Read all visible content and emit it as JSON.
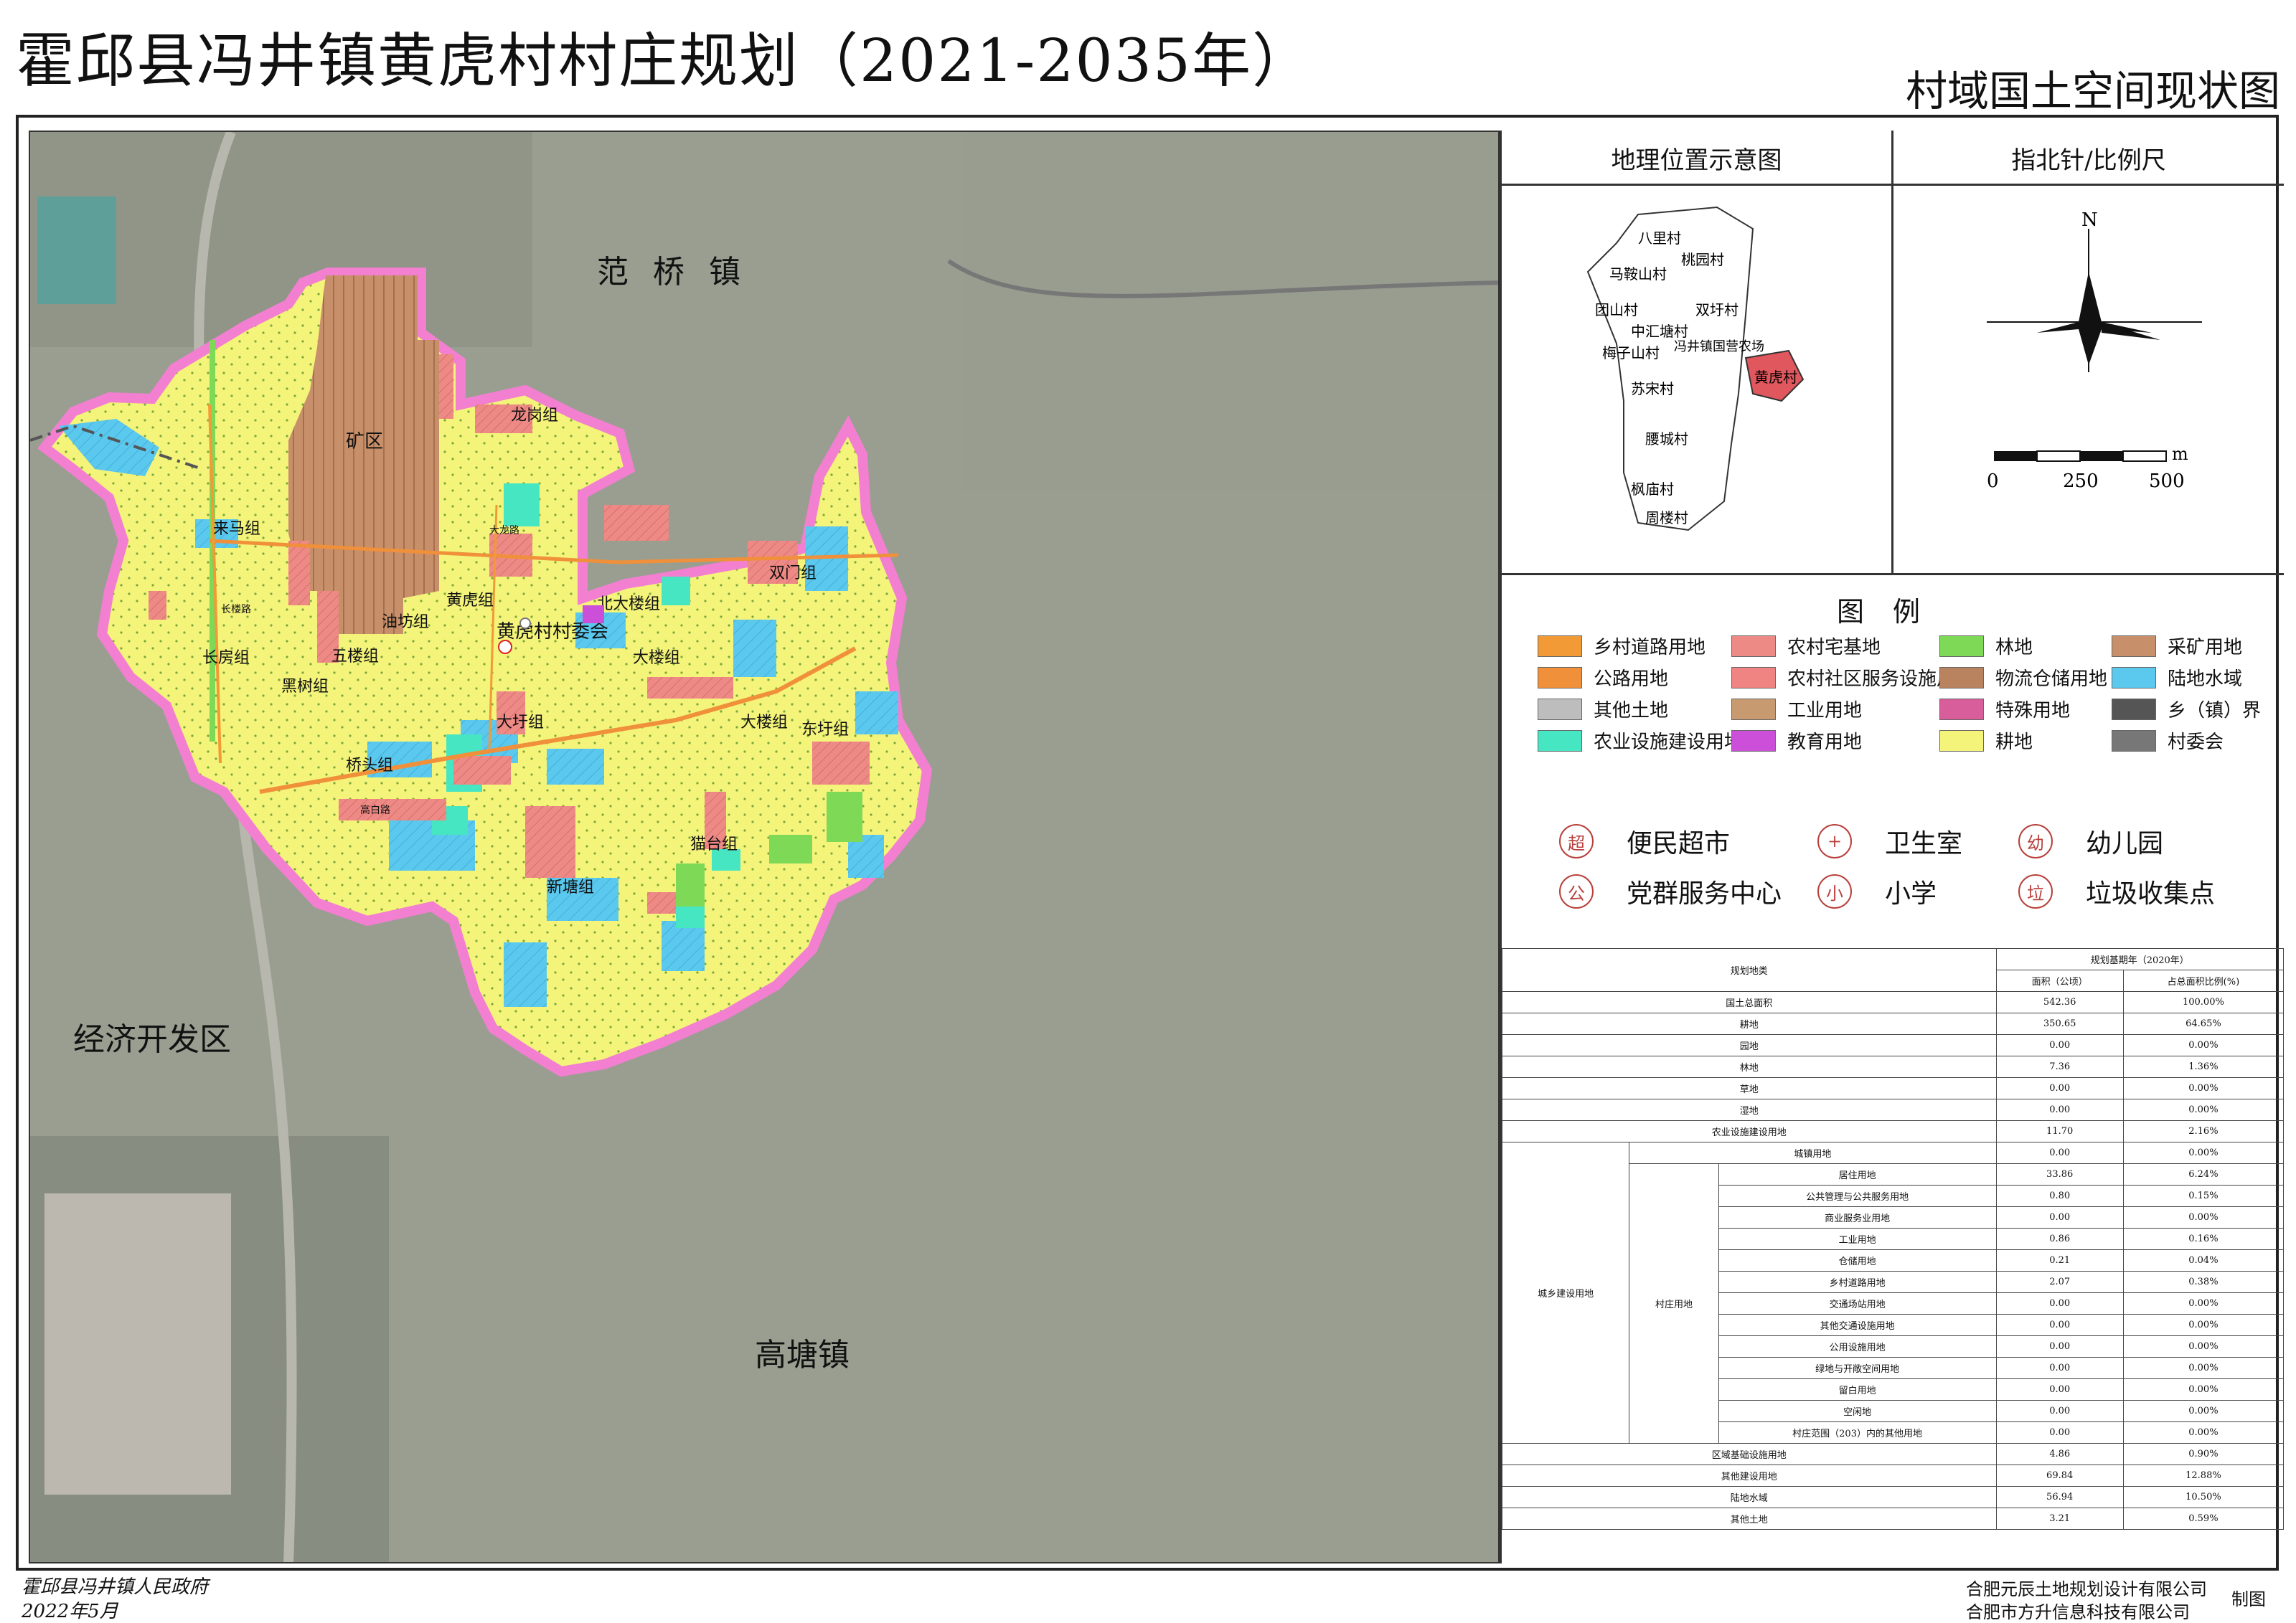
{
  "header": {
    "title": "霍邱县冯井镇黄虎村村庄规划（2021-2035年）",
    "subtitle": "村域国土空间现状图"
  },
  "map": {
    "town_labels": {
      "fanqiao": "范 桥 镇",
      "jingji": "经济开发区",
      "gaotang": "高塘镇"
    },
    "mine_label": "矿区",
    "village_committee": "黄虎村村委会",
    "group_labels": [
      "龙岗组",
      "来马组",
      "双门组",
      "北大楼组",
      "黄虎组",
      "油坊组",
      "五楼组",
      "长房组",
      "黑树组",
      "大楼组",
      "东圩组",
      "大圩组",
      "大楼组",
      "桥头组",
      "猫台组",
      "新塘组"
    ],
    "road_labels": [
      "高白路",
      "大龙路",
      "长楼路"
    ]
  },
  "panel": {
    "location": {
      "heading": "地理位置示意图",
      "villages": [
        "八里村",
        "桃园村",
        "马鞍山村",
        "团山村",
        "双圩村",
        "中汇塘村",
        "冯井镇国营农场",
        "梅子山村",
        "黄虎村",
        "苏宋村",
        "腰城村",
        "枫庙村",
        "周楼村"
      ]
    },
    "north": {
      "heading": "指北针/比例尺",
      "n_label": "N",
      "scale_labels": [
        "0",
        "250",
        "500"
      ],
      "scale_unit": "m"
    },
    "legend": {
      "title": "图例",
      "items": [
        {
          "label": "乡村道路用地",
          "color": "#f29a36"
        },
        {
          "label": "农村宅基地",
          "color": "#ee8a86"
        },
        {
          "label": "林地",
          "color": "#7ed957"
        },
        {
          "label": "采矿用地",
          "color": "#c8906a"
        },
        {
          "label": "公路用地",
          "color": "#f0903a"
        },
        {
          "label": "农村社区服务设施用地",
          "color": "#ef8482"
        },
        {
          "label": "物流仓储用地",
          "color": "#b9835f"
        },
        {
          "label": "陆地水域",
          "color": "#5bc8ee"
        },
        {
          "label": "其他土地",
          "color": "#bdbdbd"
        },
        {
          "label": "工业用地",
          "color": "#c79a6f"
        },
        {
          "label": "特殊用地",
          "color": "#d85d9b"
        },
        {
          "label": "乡（镇）界",
          "color": "#555555"
        },
        {
          "label": "农业设施建设用地",
          "color": "#47e6c3"
        },
        {
          "label": "教育用地",
          "color": "#cc4fd9"
        },
        {
          "label": "耕地",
          "color": "#f4f37a"
        },
        {
          "label": "村委会",
          "color": "#777777"
        }
      ]
    },
    "facilities": [
      {
        "icon": "超",
        "label": "便民超市"
      },
      {
        "icon": "+",
        "label": "卫生室"
      },
      {
        "icon": "幼",
        "label": "幼儿园"
      },
      {
        "icon": "公",
        "label": "党群服务中心"
      },
      {
        "icon": "小",
        "label": "小学"
      },
      {
        "icon": "垃",
        "label": "垃圾收集点"
      }
    ],
    "table": {
      "col_class": "规划地类",
      "col_base": "规划基期年（2020年）",
      "col_area": "面积（公顷）",
      "col_ratio": "占总面积比例(%)",
      "group_urban": "城乡建设用地",
      "group_village": "村庄用地",
      "rows_top": [
        {
          "name": "国土总面积",
          "area": "542.36",
          "ratio": "100.00%"
        },
        {
          "name": "耕地",
          "area": "350.65",
          "ratio": "64.65%"
        },
        {
          "name": "园地",
          "area": "0.00",
          "ratio": "0.00%"
        },
        {
          "name": "林地",
          "area": "7.36",
          "ratio": "1.36%"
        },
        {
          "name": "草地",
          "area": "0.00",
          "ratio": "0.00%"
        },
        {
          "name": "湿地",
          "area": "0.00",
          "ratio": "0.00%"
        },
        {
          "name": "农业设施建设用地",
          "area": "11.70",
          "ratio": "2.16%"
        }
      ],
      "row_city": {
        "name": "城镇用地",
        "area": "0.00",
        "ratio": "0.00%"
      },
      "rows_village": [
        {
          "name": "居住用地",
          "area": "33.86",
          "ratio": "6.24%"
        },
        {
          "name": "公共管理与公共服务用地",
          "area": "0.80",
          "ratio": "0.15%"
        },
        {
          "name": "商业服务业用地",
          "area": "0.00",
          "ratio": "0.00%"
        },
        {
          "name": "工业用地",
          "area": "0.86",
          "ratio": "0.16%"
        },
        {
          "name": "仓储用地",
          "area": "0.21",
          "ratio": "0.04%"
        },
        {
          "name": "乡村道路用地",
          "area": "2.07",
          "ratio": "0.38%"
        },
        {
          "name": "交通场站用地",
          "area": "0.00",
          "ratio": "0.00%"
        },
        {
          "name": "其他交通设施用地",
          "area": "0.00",
          "ratio": "0.00%"
        },
        {
          "name": "公用设施用地",
          "area": "0.00",
          "ratio": "0.00%"
        },
        {
          "name": "绿地与开敞空间用地",
          "area": "0.00",
          "ratio": "0.00%"
        },
        {
          "name": "留白用地",
          "area": "0.00",
          "ratio": "0.00%"
        },
        {
          "name": "空闲地",
          "area": "0.00",
          "ratio": "0.00%"
        },
        {
          "name": "村庄范围（203）内的其他用地",
          "area": "0.00",
          "ratio": "0.00%"
        }
      ],
      "rows_bottom": [
        {
          "name": "区域基础设施用地",
          "area": "4.86",
          "ratio": "0.90%"
        },
        {
          "name": "其他建设用地",
          "area": "69.84",
          "ratio": "12.88%"
        },
        {
          "name": "陆地水域",
          "area": "56.94",
          "ratio": "10.50%"
        },
        {
          "name": "其他土地",
          "area": "3.21",
          "ratio": "0.59%"
        }
      ]
    }
  },
  "footer": {
    "gov": "霍邱县冯井镇人民政府",
    "date": "2022年5月",
    "org1": "合肥元辰土地规划设计有限公司",
    "org2": "合肥市方升信息科技有限公司",
    "made": "制图"
  }
}
